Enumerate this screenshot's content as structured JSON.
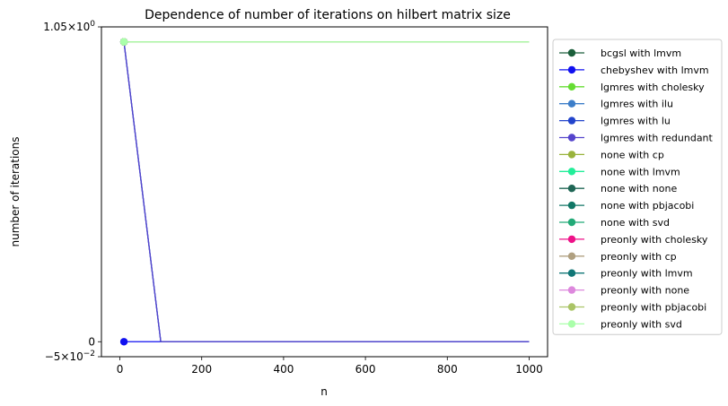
{
  "chart_data": {
    "type": "line",
    "title": "Dependence of number of iterations on hilbert matrix size",
    "xlabel": "n",
    "ylabel": "number of iterations",
    "xlim": [
      -45,
      1045
    ],
    "ylim": [
      -0.05,
      1.05
    ],
    "x_ticks": [
      0,
      200,
      400,
      600,
      800,
      1000
    ],
    "y_ticks": [
      {
        "value": 1.05,
        "base": "1.05",
        "exp": "0",
        "times": true
      },
      {
        "value": 0,
        "base": "0",
        "exp": "",
        "times": false
      },
      {
        "value": -0.05,
        "base": "−5",
        "exp": "−2",
        "times": true
      }
    ],
    "grid": false,
    "legend_position": "outside-right",
    "x": [
      10,
      100,
      1000
    ],
    "series": [
      {
        "name": "bcgsl with lmvm",
        "color": "#1a5e3a",
        "values": [
          1,
          1,
          1
        ]
      },
      {
        "name": "chebyshev with lmvm",
        "color": "#1010f0",
        "values": [
          0,
          0,
          0
        ]
      },
      {
        "name": "lgmres with cholesky",
        "color": "#66dd33",
        "values": [
          1,
          1,
          1
        ]
      },
      {
        "name": "lgmres with ilu",
        "color": "#3d7ec9",
        "values": [
          1,
          0,
          0
        ]
      },
      {
        "name": "lgmres with lu",
        "color": "#2244cc",
        "values": [
          1,
          0,
          0
        ]
      },
      {
        "name": "lgmres with redundant",
        "color": "#5544cc",
        "values": [
          1,
          0,
          0
        ]
      },
      {
        "name": "none with cp",
        "color": "#99b33c",
        "values": [
          1,
          1,
          1
        ]
      },
      {
        "name": "none with lmvm",
        "color": "#22ee99",
        "values": [
          1,
          1,
          1
        ]
      },
      {
        "name": "none with none",
        "color": "#1f6655",
        "values": [
          1,
          1,
          1
        ]
      },
      {
        "name": "none with pbjacobi",
        "color": "#117766",
        "values": [
          1,
          1,
          1
        ]
      },
      {
        "name": "none with svd",
        "color": "#22aa77",
        "values": [
          1,
          1,
          1
        ]
      },
      {
        "name": "preonly with cholesky",
        "color": "#ee1188",
        "values": [
          1,
          1,
          1
        ]
      },
      {
        "name": "preonly with cp",
        "color": "#b0a080",
        "values": [
          1,
          1,
          1
        ]
      },
      {
        "name": "preonly with lmvm",
        "color": "#117777",
        "values": [
          1,
          1,
          1
        ]
      },
      {
        "name": "preonly with none",
        "color": "#dd88dd",
        "values": [
          1,
          1,
          1
        ]
      },
      {
        "name": "preonly with pbjacobi",
        "color": "#aac466",
        "values": [
          1,
          1,
          1
        ]
      },
      {
        "name": "preonly with svd",
        "color": "#aaffaa",
        "values": [
          1,
          1,
          1
        ]
      }
    ]
  }
}
